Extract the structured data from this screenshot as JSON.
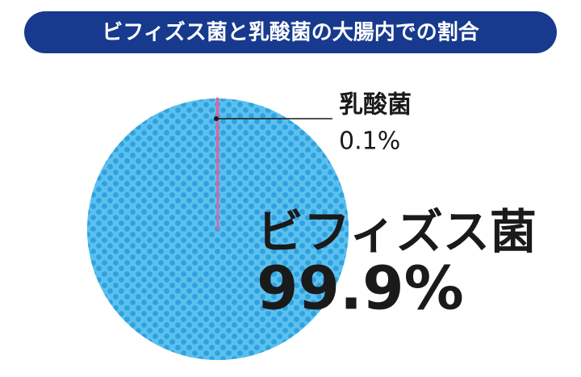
{
  "chart_data": {
    "type": "pie",
    "title": "ビフィズス菌と乳酸菌の大腸内での割合",
    "categories": [
      "ビフィズス菌",
      "乳酸菌"
    ],
    "values": [
      99.9,
      0.1
    ],
    "value_labels": [
      "99.9%",
      "0.1%"
    ],
    "colors": [
      "#5cc0ee",
      "#e2639e"
    ]
  }
}
